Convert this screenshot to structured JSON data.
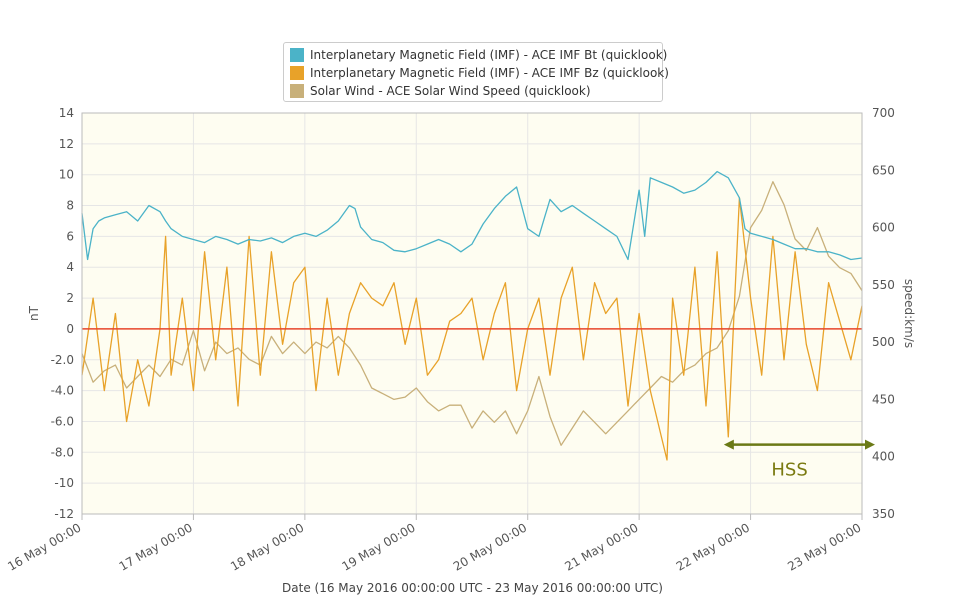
{
  "chart_data": {
    "type": "line",
    "legend": {
      "placement": "top-center",
      "entries": [
        {
          "label": "Interplanetary Magnetic Field (IMF) - ACE IMF Bt (quicklook)",
          "color": "#4bb3c8"
        },
        {
          "label": "Interplanetary Magnetic Field (IMF) - ACE IMF Bz (quicklook)",
          "color": "#e8a229"
        },
        {
          "label": "Solar Wind - ACE Solar Wind Speed (quicklook)",
          "color": "#c8b07a"
        }
      ]
    },
    "xlabel": "Date (16 May 2016 00:00:00 UTC - 23 May 2016 00:00:00 UTC)",
    "x_ticks": [
      "16 May 00:00",
      "17 May 00:00",
      "18 May 00:00",
      "19 May 00:00",
      "20 May 00:00",
      "21 May 00:00",
      "22 May 00:00",
      "23 May 00:00"
    ],
    "xlim_days": [
      0,
      7
    ],
    "left_axis": {
      "label": "nT",
      "ylim": [
        -12,
        14
      ],
      "tick_labels": [
        "14",
        "12",
        "10",
        "8",
        "6",
        "4",
        "2",
        "0",
        "-2.0",
        "-4.0",
        "-6.0",
        "-8.0",
        "-10",
        "-12"
      ],
      "tick_values": [
        14,
        12,
        10,
        8,
        6,
        4,
        2,
        0,
        -2,
        -4,
        -6,
        -8,
        -10,
        -12
      ]
    },
    "right_axis": {
      "label": "speed:km/s",
      "ylim": [
        350,
        700
      ],
      "tick_labels": [
        "700",
        "650",
        "600",
        "550",
        "500",
        "450",
        "400",
        "350"
      ],
      "tick_values": [
        700,
        650,
        600,
        550,
        500,
        450,
        400,
        350
      ]
    },
    "zero_line": {
      "value": 0,
      "color": "#e8462b"
    },
    "grid": true,
    "background": "#fefdf1",
    "series": [
      {
        "name": "Interplanetary Magnetic Field (IMF) - ACE IMF Bt (quicklook)",
        "axis": "left",
        "color": "#4bb3c8",
        "x": [
          0.0,
          0.05,
          0.1,
          0.15,
          0.2,
          0.3,
          0.4,
          0.5,
          0.6,
          0.7,
          0.75,
          0.8,
          0.9,
          1.0,
          1.1,
          1.2,
          1.3,
          1.4,
          1.5,
          1.6,
          1.7,
          1.8,
          1.9,
          2.0,
          2.1,
          2.2,
          2.3,
          2.4,
          2.45,
          2.5,
          2.6,
          2.7,
          2.8,
          2.9,
          3.0,
          3.1,
          3.2,
          3.3,
          3.4,
          3.5,
          3.6,
          3.7,
          3.8,
          3.9,
          4.0,
          4.1,
          4.15,
          4.2,
          4.3,
          4.4,
          4.5,
          4.6,
          4.7,
          4.8,
          4.9,
          5.0,
          5.05,
          5.1,
          5.2,
          5.3,
          5.4,
          5.5,
          5.6,
          5.7,
          5.8,
          5.9,
          5.95,
          6.0,
          6.1,
          6.2,
          6.3,
          6.4,
          6.5,
          6.6,
          6.7,
          6.8,
          6.9,
          7.0
        ],
        "values": [
          7.5,
          4.5,
          6.5,
          7.0,
          7.2,
          7.4,
          7.6,
          7.0,
          8.0,
          7.6,
          7.0,
          6.5,
          6.0,
          5.8,
          5.6,
          6.0,
          5.8,
          5.5,
          5.8,
          5.7,
          5.9,
          5.6,
          6.0,
          6.2,
          6.0,
          6.4,
          7.0,
          8.0,
          7.8,
          6.6,
          5.8,
          5.6,
          5.1,
          5.0,
          5.2,
          5.5,
          5.8,
          5.5,
          5.0,
          5.5,
          6.8,
          7.8,
          8.6,
          9.2,
          6.5,
          6.0,
          7.2,
          8.4,
          7.6,
          8.0,
          7.5,
          7.0,
          6.5,
          6.0,
          4.5,
          9.0,
          6.0,
          9.8,
          9.5,
          9.2,
          8.8,
          9.0,
          9.5,
          10.2,
          9.8,
          8.5,
          6.5,
          6.2,
          6.0,
          5.8,
          5.5,
          5.2,
          5.2,
          5.0,
          5.0,
          4.8,
          4.5,
          4.6
        ]
      },
      {
        "name": "Interplanetary Magnetic Field (IMF) - ACE IMF Bz (quicklook)",
        "axis": "left",
        "color": "#e8a229",
        "x": [
          0.0,
          0.1,
          0.2,
          0.3,
          0.4,
          0.5,
          0.6,
          0.7,
          0.75,
          0.8,
          0.9,
          1.0,
          1.1,
          1.2,
          1.3,
          1.4,
          1.5,
          1.6,
          1.7,
          1.8,
          1.9,
          2.0,
          2.1,
          2.2,
          2.3,
          2.4,
          2.5,
          2.6,
          2.7,
          2.8,
          2.9,
          3.0,
          3.1,
          3.2,
          3.3,
          3.4,
          3.5,
          3.6,
          3.7,
          3.8,
          3.9,
          4.0,
          4.1,
          4.2,
          4.3,
          4.4,
          4.5,
          4.6,
          4.7,
          4.8,
          4.9,
          5.0,
          5.1,
          5.2,
          5.25,
          5.3,
          5.4,
          5.5,
          5.6,
          5.7,
          5.8,
          5.9,
          6.0,
          6.1,
          6.2,
          6.3,
          6.4,
          6.5,
          6.6,
          6.7,
          6.8,
          6.9,
          7.0
        ],
        "values": [
          -3.0,
          2.0,
          -4.0,
          1.0,
          -6.0,
          -2.0,
          -5.0,
          0.0,
          6.0,
          -3.0,
          2.0,
          -4.0,
          5.0,
          -2.0,
          4.0,
          -5.0,
          6.0,
          -3.0,
          5.0,
          -1.0,
          3.0,
          4.0,
          -4.0,
          2.0,
          -3.0,
          1.0,
          3.0,
          2.0,
          1.5,
          3.0,
          -1.0,
          2.0,
          -3.0,
          -2.0,
          0.5,
          1.0,
          2.0,
          -2.0,
          1.0,
          3.0,
          -4.0,
          0.0,
          2.0,
          -3.0,
          2.0,
          4.0,
          -2.0,
          3.0,
          1.0,
          2.0,
          -5.0,
          1.0,
          -4.0,
          -7.0,
          -8.5,
          2.0,
          -3.0,
          4.0,
          -5.0,
          5.0,
          -7.0,
          8.5,
          2.0,
          -3.0,
          6.0,
          -2.0,
          5.0,
          -1.0,
          -4.0,
          3.0,
          0.5,
          -2.0,
          1.5
        ]
      },
      {
        "name": "Solar Wind - ACE Solar Wind Speed (quicklook)",
        "axis": "right",
        "color": "#c8b07a",
        "x": [
          0.0,
          0.1,
          0.2,
          0.3,
          0.4,
          0.5,
          0.6,
          0.7,
          0.8,
          0.9,
          1.0,
          1.1,
          1.2,
          1.3,
          1.4,
          1.5,
          1.6,
          1.7,
          1.8,
          1.9,
          2.0,
          2.1,
          2.2,
          2.3,
          2.4,
          2.5,
          2.6,
          2.7,
          2.8,
          2.9,
          3.0,
          3.1,
          3.2,
          3.3,
          3.4,
          3.5,
          3.6,
          3.7,
          3.8,
          3.9,
          4.0,
          4.1,
          4.2,
          4.3,
          4.4,
          4.5,
          4.6,
          4.7,
          4.8,
          4.9,
          5.0,
          5.1,
          5.2,
          5.3,
          5.4,
          5.5,
          5.6,
          5.7,
          5.8,
          5.9,
          6.0,
          6.1,
          6.2,
          6.3,
          6.4,
          6.5,
          6.6,
          6.7,
          6.8,
          6.9,
          7.0
        ],
        "values": [
          490,
          465,
          475,
          480,
          460,
          470,
          480,
          470,
          485,
          480,
          510,
          475,
          500,
          490,
          495,
          485,
          480,
          505,
          490,
          500,
          490,
          500,
          495,
          505,
          495,
          480,
          460,
          455,
          450,
          452,
          460,
          448,
          440,
          445,
          445,
          425,
          440,
          430,
          440,
          420,
          440,
          470,
          435,
          410,
          425,
          440,
          430,
          420,
          430,
          440,
          450,
          460,
          470,
          465,
          475,
          480,
          490,
          495,
          510,
          540,
          600,
          615,
          640,
          620,
          590,
          580,
          600,
          575,
          565,
          560,
          545
        ]
      }
    ],
    "annotation": {
      "label": "HSS",
      "color": "#6b7a16",
      "arrow_from_day": 5.76,
      "arrow_to_day": 7.14,
      "arrow_at_nT": -7.5,
      "label_at_day": 6.35,
      "label_at_nT": -9.1
    }
  }
}
